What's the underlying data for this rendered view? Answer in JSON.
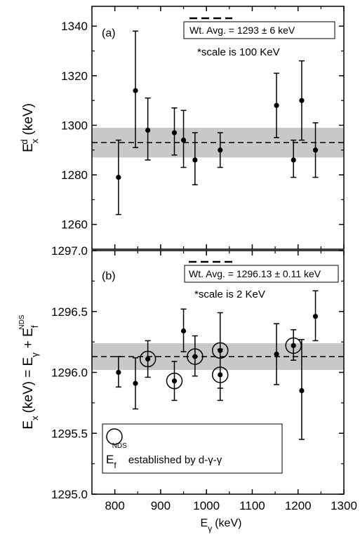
{
  "chart_data": [
    {
      "type": "scatter",
      "panel_label": "(a)",
      "ylabel_main": "E",
      "ylabel_sub": "x",
      "ylabel_sup": "d",
      "ylabel_unit": "(keV)",
      "ylim": [
        1250,
        1348
      ],
      "yticks": [
        1260,
        1280,
        1300,
        1320,
        1340
      ],
      "ytick_labels": [
        "1260",
        "1280",
        "1300",
        "1320",
        "1340"
      ],
      "xlim": [
        750,
        1300
      ],
      "xticks": [
        800,
        900,
        1000,
        1100,
        1200,
        1300
      ],
      "weighted_average": 1293,
      "band": [
        1287,
        1299
      ],
      "legend_text": "Wt. Avg. = 1293 ± 6 keV",
      "note": "*scale is 100 KeV",
      "points": [
        {
          "x": 808,
          "y": 1279,
          "low": 1264,
          "high": 1294
        },
        {
          "x": 845,
          "y": 1314,
          "low": 1291,
          "high": 1338
        },
        {
          "x": 872,
          "y": 1298,
          "low": 1286,
          "high": 1311
        },
        {
          "x": 930,
          "y": 1297,
          "low": 1288,
          "high": 1307
        },
        {
          "x": 950,
          "y": 1294,
          "low": 1283,
          "high": 1306
        },
        {
          "x": 975,
          "y": 1286,
          "low": 1276,
          "high": 1297
        },
        {
          "x": 1030,
          "y": 1290,
          "low": 1283,
          "high": 1297
        },
        {
          "x": 1153,
          "y": 1308,
          "low": 1295,
          "high": 1321
        },
        {
          "x": 1190,
          "y": 1286,
          "low": 1279,
          "high": 1294
        },
        {
          "x": 1208,
          "y": 1310,
          "low": 1294,
          "high": 1326
        },
        {
          "x": 1238,
          "y": 1290,
          "low": 1279,
          "high": 1301
        }
      ]
    },
    {
      "type": "scatter",
      "panel_label": "(b)",
      "ylabel_left_main": "E",
      "ylabel_left_sub": "x",
      "ylabel_mid": "(keV) = E",
      "ylabel_mid_sub": "γ",
      "ylabel_plus": "+ E",
      "ylabel_end_sub": "f",
      "ylabel_end_sup": "NDS",
      "ylim": [
        1295.0,
        1297.0
      ],
      "yticks": [
        1295.0,
        1295.5,
        1296.0,
        1296.5,
        1297.0
      ],
      "ytick_labels": [
        "1295.0",
        "1295.5",
        "1296.0",
        "1296.5",
        "1297.0"
      ],
      "xlim": [
        750,
        1300
      ],
      "xticks": [
        800,
        900,
        1000,
        1100,
        1200,
        1300
      ],
      "xtick_labels": [
        "800",
        "900",
        "1000",
        "1100",
        "1200",
        "1300"
      ],
      "xlabel_main": "E",
      "xlabel_sub": "γ",
      "xlabel_unit": "(keV)",
      "weighted_average": 1296.13,
      "band": [
        1296.02,
        1296.24
      ],
      "legend_text": "Wt. Avg. = 1296.13 ± 0.11 keV",
      "note": "*scale is 2 KeV",
      "marker_legend_main": "E",
      "marker_legend_sub": "f",
      "marker_legend_sup": "NDS",
      "marker_legend_text": "established by d-γ-γ",
      "points": [
        {
          "x": 808,
          "y": 1296.0,
          "low": 1295.88,
          "high": 1296.13,
          "circled": false
        },
        {
          "x": 845,
          "y": 1295.91,
          "low": 1295.7,
          "high": 1296.12,
          "circled": false
        },
        {
          "x": 872,
          "y": 1296.11,
          "low": 1295.96,
          "high": 1296.26,
          "circled": true
        },
        {
          "x": 930,
          "y": 1295.93,
          "low": 1295.77,
          "high": 1296.09,
          "circled": true
        },
        {
          "x": 950,
          "y": 1296.34,
          "low": 1296.17,
          "high": 1296.52,
          "circled": false
        },
        {
          "x": 975,
          "y": 1296.13,
          "low": 1295.97,
          "high": 1296.3,
          "circled": true
        },
        {
          "x": 1030,
          "y": 1296.18,
          "low": 1295.87,
          "high": 1296.49,
          "circled": true
        },
        {
          "x": 1030,
          "y": 1295.98,
          "low": 1295.77,
          "high": 1296.19,
          "circled": true
        },
        {
          "x": 1153,
          "y": 1296.15,
          "low": 1295.9,
          "high": 1296.4,
          "circled": false
        },
        {
          "x": 1190,
          "y": 1296.22,
          "low": 1296.1,
          "high": 1296.35,
          "circled": true
        },
        {
          "x": 1208,
          "y": 1295.85,
          "low": 1295.45,
          "high": 1296.27,
          "circled": false
        },
        {
          "x": 1238,
          "y": 1296.46,
          "low": 1296.26,
          "high": 1296.67,
          "circled": false
        }
      ]
    }
  ]
}
